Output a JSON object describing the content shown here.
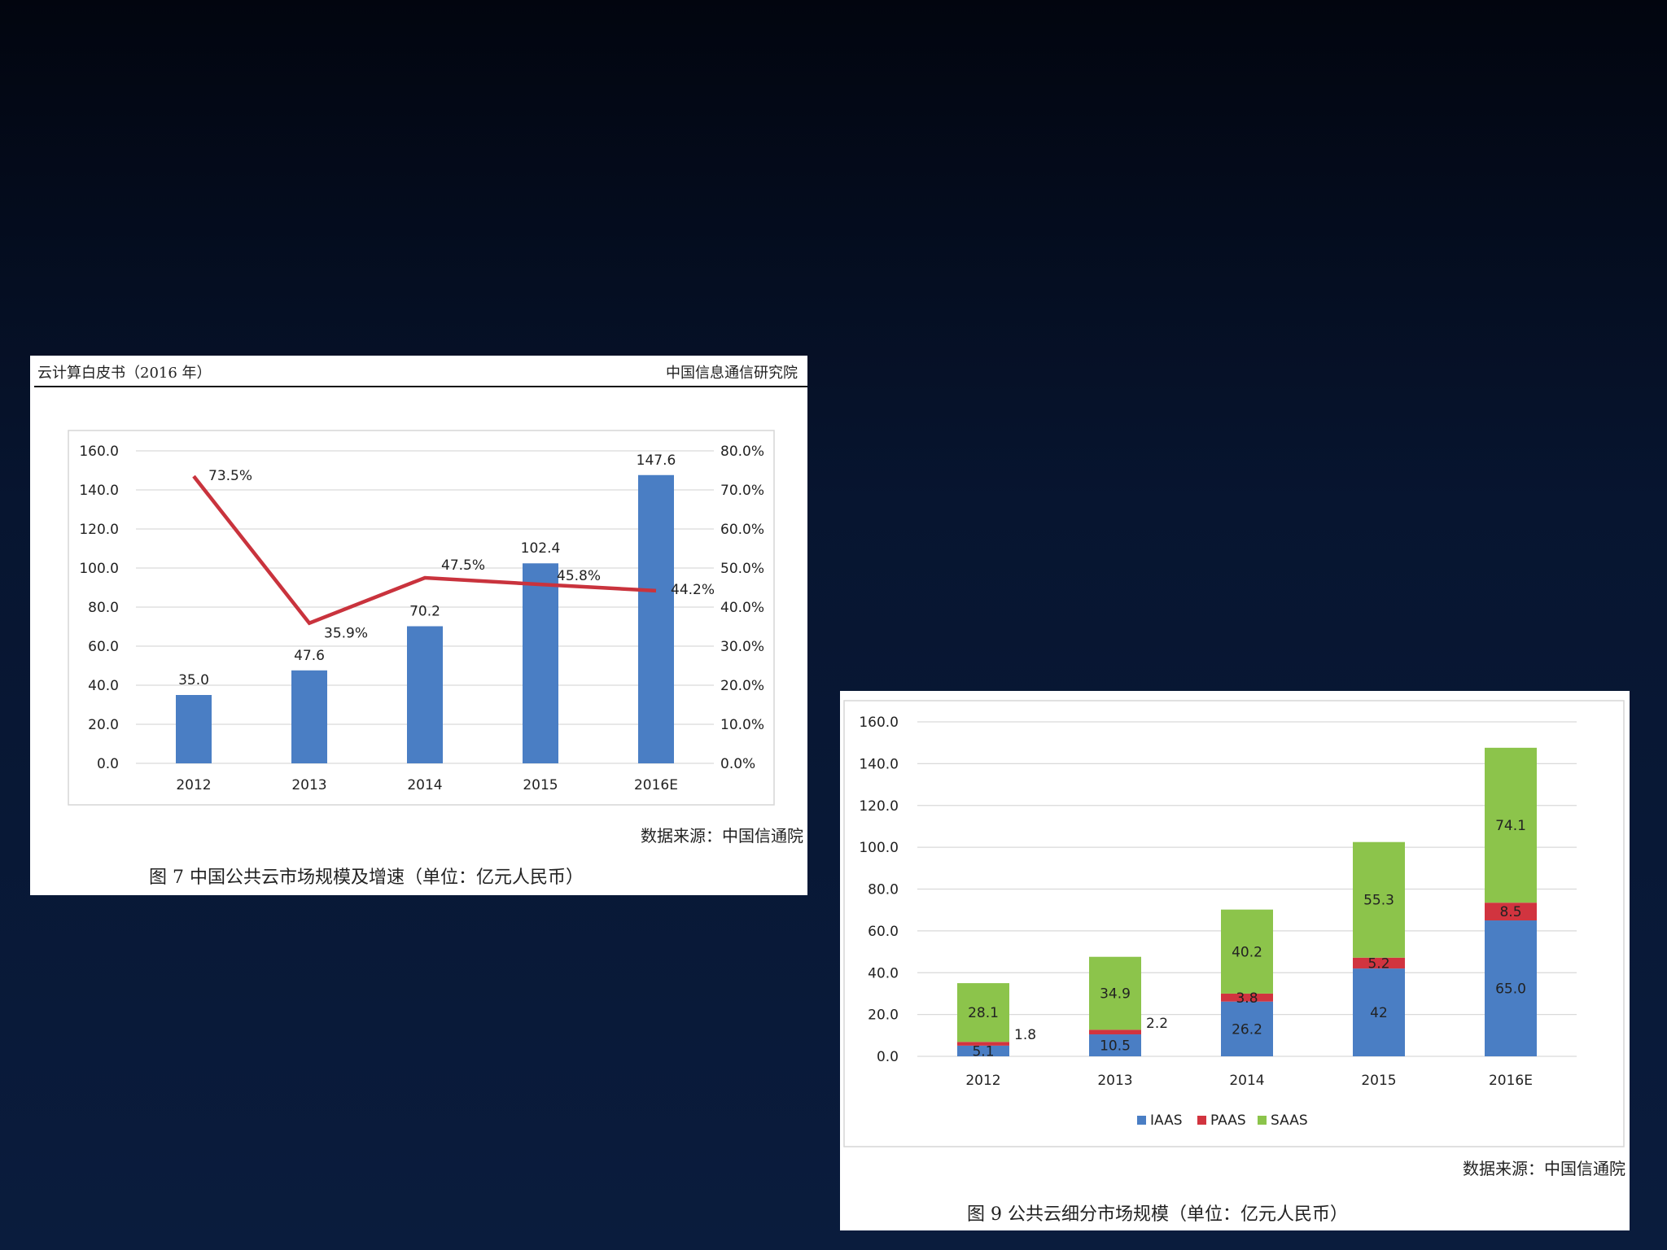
{
  "figure1": {
    "header_left": "云计算白皮书（2016 年）",
    "header_right": "中国信息通信研究院",
    "source": "数据来源：中国信通院",
    "caption": "图 7   中国公共云市场规模及增速（单位：亿元人民币）"
  },
  "figure2": {
    "source": "数据来源：中国信通院",
    "caption": "图 9   公共云细分市场规模（单位：亿元人民币）"
  },
  "chart_data": [
    {
      "type": "bar",
      "categories": [
        "2012",
        "2013",
        "2014",
        "2015",
        "2016E"
      ],
      "series": [
        {
          "values": [
            35.0,
            47.6,
            70.2,
            102.4,
            147.6
          ],
          "labels": [
            "35.0",
            "47.6",
            "70.2",
            "102.4",
            "147.6"
          ],
          "color": "#4a7ec4"
        },
        {
          "type": "line",
          "axis": "right",
          "values": [
            73.5,
            35.9,
            47.5,
            45.8,
            44.2
          ],
          "labels": [
            "73.5%",
            "35.9%",
            "47.5%",
            "45.8%",
            "44.2%"
          ],
          "color": "#c9333d"
        }
      ],
      "ylim": [
        0,
        160
      ],
      "yticks": [
        "0.0",
        "20.0",
        "40.0",
        "60.0",
        "80.0",
        "100.0",
        "120.0",
        "140.0",
        "160.0"
      ],
      "y2lim": [
        0,
        80
      ],
      "y2ticks": [
        "0.0%",
        "10.0%",
        "20.0%",
        "30.0%",
        "40.0%",
        "50.0%",
        "60.0%",
        "70.0%",
        "80.0%"
      ],
      "grid": true
    },
    {
      "type": "bar",
      "stacked": true,
      "categories": [
        "2012",
        "2013",
        "2014",
        "2015",
        "2016E"
      ],
      "series": [
        {
          "name": "IAAS",
          "values": [
            5.1,
            10.5,
            26.2,
            42,
            65.0
          ],
          "labels": [
            "5.1",
            "10.5",
            "26.2",
            "42",
            "65.0"
          ],
          "color": "#4a7ec4"
        },
        {
          "name": "PAAS",
          "values": [
            1.8,
            2.2,
            3.8,
            5.2,
            8.5
          ],
          "labels": [
            "1.8",
            "2.2",
            "3.8",
            "5.2",
            "8.5"
          ],
          "color": "#d1343f"
        },
        {
          "name": "SAAS",
          "values": [
            28.1,
            34.9,
            40.2,
            55.3,
            74.1
          ],
          "labels": [
            "28.1",
            "34.9",
            "40.2",
            "55.3",
            "74.1"
          ],
          "color": "#8cc44b"
        }
      ],
      "ylim": [
        0,
        160
      ],
      "yticks": [
        "0.0",
        "20.0",
        "40.0",
        "60.0",
        "80.0",
        "100.0",
        "120.0",
        "140.0",
        "160.0"
      ],
      "grid": true,
      "legend": "bottom"
    }
  ]
}
